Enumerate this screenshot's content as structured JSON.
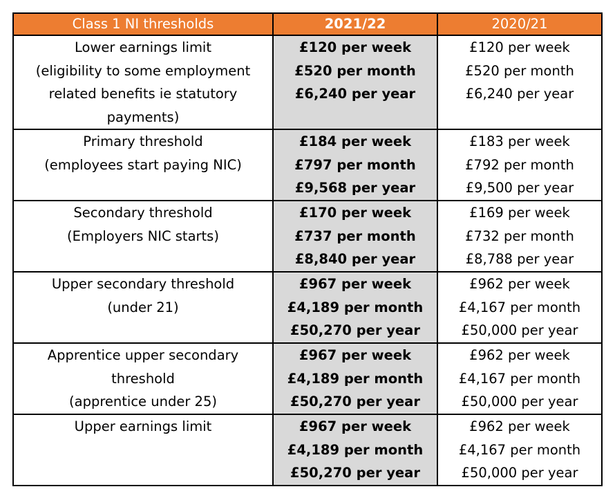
{
  "header": {
    "col1": "Class 1 NI thresholds",
    "col2": "2021/22",
    "col3": "2020/21"
  },
  "rows": [
    {
      "label": [
        "Lower earnings limit",
        "(eligibility to some employment",
        "related benefits ie statutory",
        "payments)"
      ],
      "y2021": [
        "£120 per week",
        "£520 per month",
        "£6,240 per year"
      ],
      "y2020": [
        "£120 per week",
        "£520 per month",
        "£6,240 per year"
      ]
    },
    {
      "label": [
        "Primary threshold",
        "(employees start paying NIC)"
      ],
      "y2021": [
        "£184 per week",
        "£797 per month",
        "£9,568 per year"
      ],
      "y2020": [
        "£183 per week",
        "£792 per month",
        "£9,500 per year"
      ]
    },
    {
      "label": [
        "Secondary threshold",
        "(Employers NIC starts)"
      ],
      "y2021": [
        "£170 per week",
        "£737 per month",
        "£8,840 per year"
      ],
      "y2020": [
        "£169 per week",
        "£732 per month",
        "£8,788 per year"
      ]
    },
    {
      "label": [
        "Upper secondary threshold",
        "(under 21)"
      ],
      "y2021": [
        "£967 per week",
        "£4,189 per month",
        "£50,270 per year"
      ],
      "y2020": [
        "£962 per week",
        "£4,167 per month",
        "£50,000 per year"
      ]
    },
    {
      "label": [
        "Apprentice upper secondary",
        "threshold",
        "(apprentice under 25)"
      ],
      "y2021": [
        "£967 per week",
        "£4,189 per month",
        "£50,270 per year"
      ],
      "y2020": [
        "£962 per week",
        "£4,167 per month",
        "£50,000 per year"
      ]
    },
    {
      "label": [
        "Upper earnings limit"
      ],
      "y2021": [
        "£967 per week",
        "£4,189 per month",
        "£50,270 per year"
      ],
      "y2020": [
        "£962 per week",
        "£4,167 per month",
        "£50,000 per year"
      ]
    }
  ],
  "colors": {
    "header_bg": "#ed7d31",
    "header_text": "#ffffff",
    "current_year_bg": "#d9d9d9"
  }
}
